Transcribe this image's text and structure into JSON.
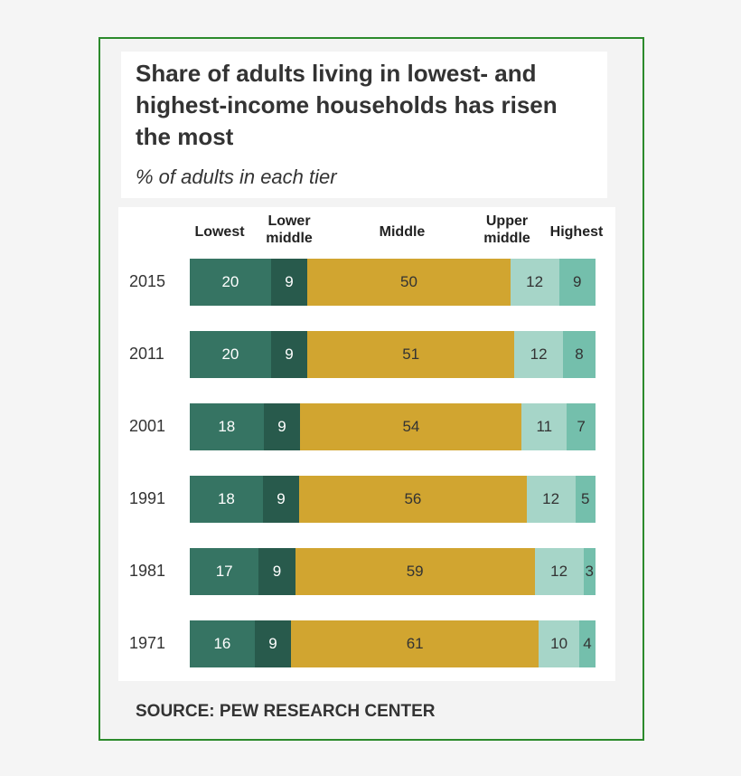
{
  "title": "Share of adults living in lowest- and highest-income households has risen the most",
  "subtitle": "% of adults in each tier",
  "source": "SOURCE: PEW RESEARCH CENTER",
  "chart_data": {
    "type": "bar",
    "orientation": "horizontal-stacked",
    "categories": [
      "2015",
      "2011",
      "2001",
      "1991",
      "1981",
      "1971"
    ],
    "series": [
      {
        "name": "Lowest",
        "color": "#367463",
        "values": [
          20,
          20,
          18,
          18,
          17,
          16
        ]
      },
      {
        "name": "Lower middle",
        "color": "#285a4c",
        "values": [
          9,
          9,
          9,
          9,
          9,
          9
        ]
      },
      {
        "name": "Middle",
        "color": "#d1a530",
        "values": [
          50,
          51,
          54,
          56,
          59,
          61
        ]
      },
      {
        "name": "Upper middle",
        "color": "#a6d5c8",
        "values": [
          12,
          12,
          11,
          12,
          12,
          10
        ]
      },
      {
        "name": "Highest",
        "color": "#74bfac",
        "values": [
          9,
          8,
          7,
          5,
          3,
          4
        ]
      }
    ],
    "header_labels": [
      "Lowest",
      "Lower\nmiddle",
      "Middle",
      "Upper\nmiddle",
      "Highest"
    ]
  }
}
